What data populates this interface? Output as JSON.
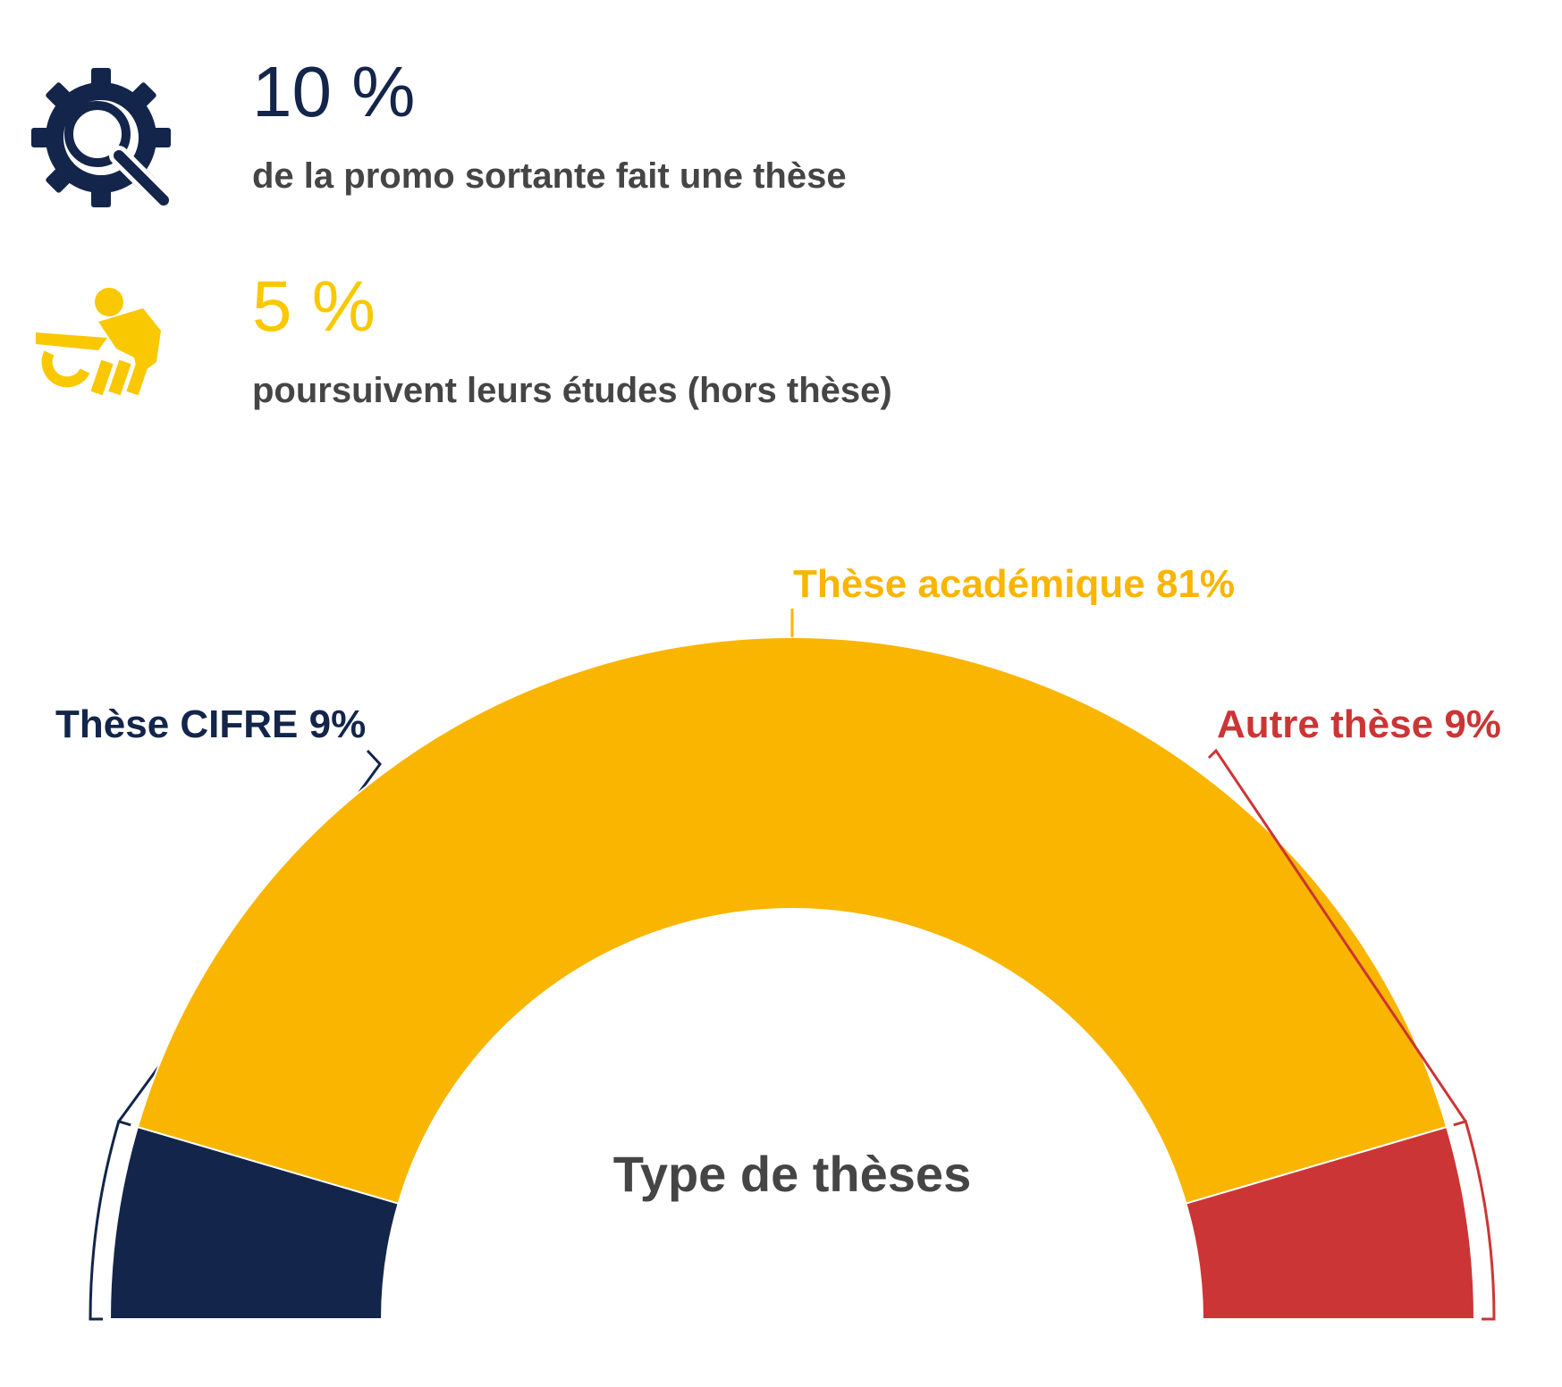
{
  "stats": [
    {
      "value": "10 %",
      "text": "de la promo sortante fait une thèse"
    },
    {
      "value": "5 %",
      "text": "poursuivent leurs études (hors thèse)"
    }
  ],
  "chart_data": {
    "type": "pie",
    "title": "Type de thèses",
    "categories": [
      "Thèse CIFRE",
      "Thèse académique",
      "Autre thèse"
    ],
    "values": [
      9,
      81,
      9
    ],
    "value_labels": [
      "9%",
      "81%",
      "9%"
    ],
    "colors": [
      "#13254a",
      "#f9b500",
      "#cc3535"
    ]
  }
}
